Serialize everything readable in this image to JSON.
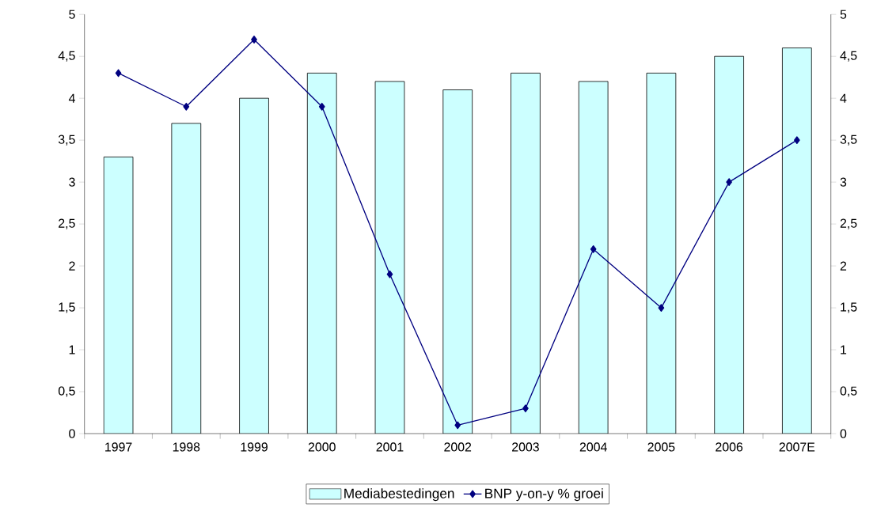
{
  "chart_data": {
    "type": "bar",
    "categories": [
      "1997",
      "1998",
      "1999",
      "2000",
      "2001",
      "2002",
      "2003",
      "2004",
      "2005",
      "2006",
      "2007E"
    ],
    "series": [
      {
        "name": "Mediabestedingen",
        "color": "#ccffff",
        "values": [
          3.3,
          3.7,
          4.0,
          4.3,
          4.2,
          4.1,
          4.3,
          4.2,
          4.3,
          4.5,
          4.6
        ]
      },
      {
        "name": "BNP y-on-y % groei",
        "type": "line",
        "axis": "y2",
        "color": "#000080",
        "marker": "diamond",
        "line_style": "solid",
        "values": [
          4.3,
          3.9,
          4.7,
          3.9,
          1.9,
          0.1,
          0.3,
          2.2,
          1.5,
          3.0,
          3.5
        ]
      }
    ],
    "ylim": [
      0,
      5
    ],
    "yticks": [
      0,
      {
        "value": 0.5,
        "label": "0,5"
      },
      1,
      {
        "value": 1.5,
        "label": "1,5"
      },
      2,
      {
        "value": 2.5,
        "label": "2,5"
      },
      3,
      {
        "value": 3.5,
        "label": "3,5"
      },
      4,
      {
        "value": 4.5,
        "label": "4,5"
      },
      5
    ],
    "y2lim": [
      0,
      5
    ],
    "y2ticks": [
      0,
      {
        "value": 0.5,
        "label": "0,5"
      },
      1,
      {
        "value": 1.5,
        "label": "1,5"
      },
      2,
      {
        "value": 2.5,
        "label": "2,5"
      },
      3,
      {
        "value": 3.5,
        "label": "3,5"
      },
      4,
      {
        "value": 4.5,
        "label": "4,5"
      },
      5
    ],
    "grid": false,
    "legend": "bottom"
  }
}
